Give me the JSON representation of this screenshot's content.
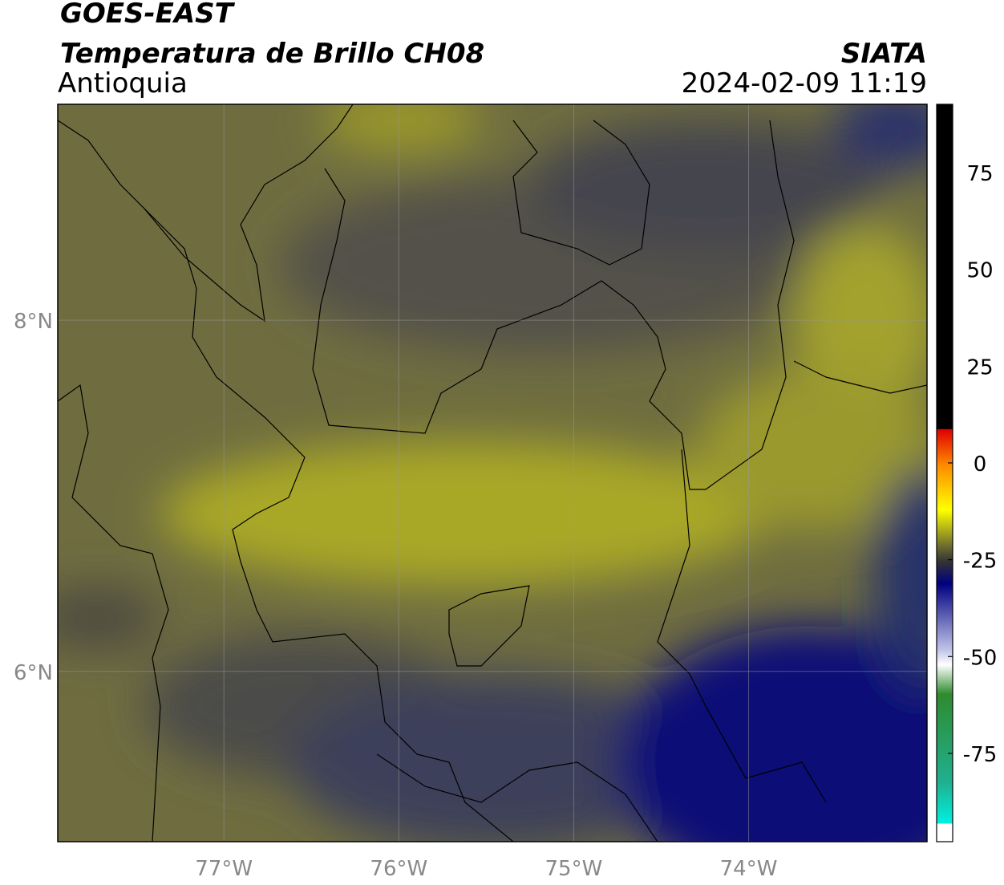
{
  "header": {
    "title": "GOES-EAST",
    "subtitle": "Temperatura de Brillo CH08",
    "region": "Antioquia",
    "source": "SIATA",
    "datetime": "2024-02-09 11:19"
  },
  "map": {
    "xlim": [
      -77.95,
      -72.98
    ],
    "ylim": [
      5.03,
      9.23
    ],
    "xticks": [
      {
        "value": -77,
        "label": "77°W"
      },
      {
        "value": -76,
        "label": "76°W"
      },
      {
        "value": -75,
        "label": "75°W"
      },
      {
        "value": -74,
        "label": "74°W"
      }
    ],
    "yticks": [
      {
        "value": 8,
        "label": "8°N"
      },
      {
        "value": 6,
        "label": "6°N"
      }
    ],
    "grid": true
  },
  "colorbar": {
    "lim": [
      -97.8,
      92.6
    ],
    "ticks": [
      75,
      50,
      25,
      0,
      -25,
      -50,
      -75
    ]
  }
}
